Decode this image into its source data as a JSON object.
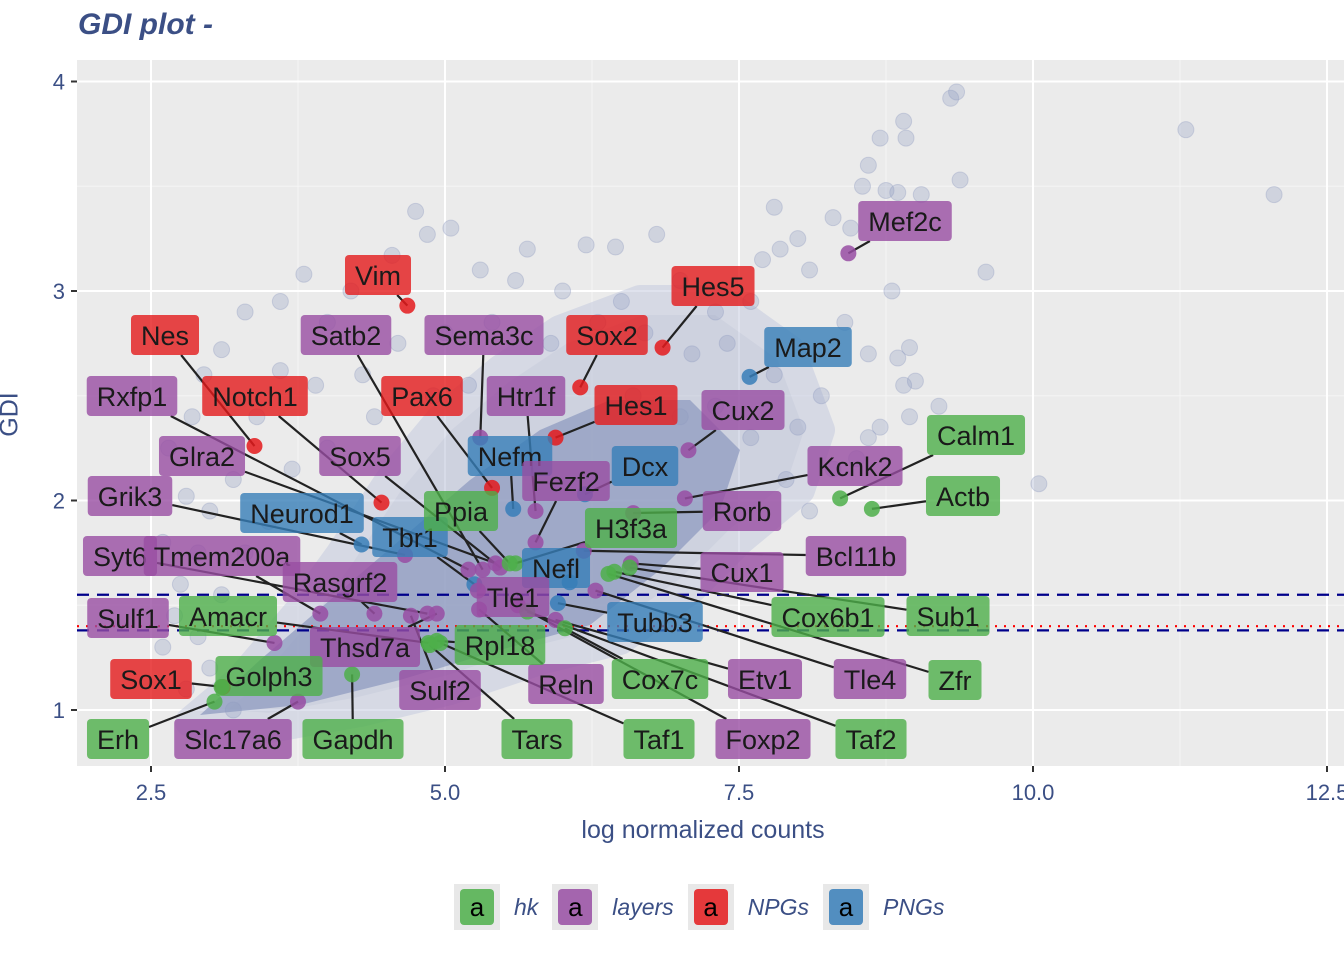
{
  "title": "GDI plot -",
  "chart_data": {
    "type": "scatter",
    "title": "GDI plot -",
    "xlabel": "log normalized counts",
    "ylabel": "GDI",
    "xlim": [
      1.9,
      12.65
    ],
    "ylim": [
      0.73,
      4.1
    ],
    "xticks": [
      2.5,
      5.0,
      7.5,
      10.0,
      12.5
    ],
    "xtick_labels": [
      "2.5",
      "5.0",
      "7.5",
      "10.0",
      "12.5"
    ],
    "yticks": [
      1,
      2,
      3,
      4
    ],
    "ytick_labels": [
      "1",
      "2",
      "3",
      "4"
    ],
    "grid": true,
    "hlines": [
      {
        "y": 1.55,
        "color": "#00008b",
        "style": "dashed"
      },
      {
        "y": 1.38,
        "color": "#00008b",
        "style": "dashed"
      },
      {
        "y": 1.4,
        "color": "#ff0000",
        "style": "dotted"
      }
    ],
    "background_color": "#8f9bc0",
    "background_points": [
      [
        12.05,
        3.46
      ],
      [
        11.3,
        3.77
      ],
      [
        10.05,
        2.08
      ],
      [
        9.35,
        3.95
      ],
      [
        9.3,
        3.92
      ],
      [
        9.38,
        3.53
      ],
      [
        9.6,
        3.09
      ],
      [
        8.9,
        3.81
      ],
      [
        8.92,
        3.73
      ],
      [
        8.7,
        3.73
      ],
      [
        8.6,
        3.6
      ],
      [
        8.55,
        3.5
      ],
      [
        8.75,
        3.48
      ],
      [
        9.05,
        3.46
      ],
      [
        8.85,
        3.47
      ],
      [
        9.0,
        2.57
      ],
      [
        8.85,
        2.68
      ],
      [
        8.95,
        2.73
      ],
      [
        8.8,
        3.0
      ],
      [
        7.8,
        3.4
      ],
      [
        8.0,
        3.25
      ],
      [
        7.7,
        3.15
      ],
      [
        7.85,
        3.2
      ],
      [
        8.3,
        3.35
      ],
      [
        8.45,
        3.3
      ],
      [
        6.8,
        3.27
      ],
      [
        5.7,
        3.2
      ],
      [
        6.2,
        3.22
      ],
      [
        6.45,
        3.21
      ],
      [
        4.85,
        3.27
      ],
      [
        5.05,
        3.3
      ],
      [
        4.75,
        3.38
      ],
      [
        4.55,
        3.17
      ],
      [
        3.8,
        3.08
      ],
      [
        3.6,
        2.62
      ],
      [
        3.1,
        2.72
      ],
      [
        2.95,
        2.6
      ],
      [
        2.85,
        2.4
      ],
      [
        2.65,
        2.25
      ],
      [
        2.8,
        2.02
      ],
      [
        2.6,
        1.8
      ],
      [
        3.3,
        2.9
      ],
      [
        3.6,
        2.95
      ],
      [
        4.2,
        3.0
      ],
      [
        4.0,
        2.85
      ],
      [
        5.3,
        3.1
      ],
      [
        5.6,
        3.05
      ],
      [
        6.0,
        3.0
      ],
      [
        6.5,
        2.95
      ],
      [
        7.0,
        3.05
      ],
      [
        7.3,
        2.9
      ],
      [
        7.6,
        2.95
      ],
      [
        8.1,
        3.1
      ],
      [
        8.4,
        2.85
      ],
      [
        8.6,
        2.7
      ],
      [
        8.9,
        2.55
      ],
      [
        8.7,
        2.35
      ],
      [
        8.95,
        2.4
      ],
      [
        9.2,
        2.45
      ],
      [
        8.5,
        2.2
      ],
      [
        8.3,
        2.15
      ],
      [
        8.1,
        1.95
      ],
      [
        7.9,
        2.1
      ],
      [
        8.6,
        2.3
      ],
      [
        3.2,
        2.1
      ],
      [
        3.0,
        1.95
      ],
      [
        2.9,
        1.75
      ],
      [
        2.75,
        1.6
      ],
      [
        2.7,
        1.45
      ],
      [
        2.6,
        1.3
      ],
      [
        3.4,
        2.4
      ],
      [
        3.9,
        2.55
      ],
      [
        4.3,
        2.6
      ],
      [
        4.6,
        2.75
      ],
      [
        5.0,
        2.8
      ],
      [
        5.4,
        2.85
      ],
      [
        5.9,
        2.75
      ],
      [
        6.3,
        2.85
      ],
      [
        6.7,
        2.8
      ],
      [
        7.1,
        2.7
      ],
      [
        7.4,
        2.75
      ],
      [
        7.8,
        2.6
      ],
      [
        8.2,
        2.5
      ],
      [
        8.0,
        2.35
      ],
      [
        7.6,
        2.3
      ],
      [
        7.3,
        2.45
      ],
      [
        4.0,
        2.25
      ],
      [
        3.7,
        2.15
      ],
      [
        3.5,
        1.9
      ],
      [
        3.3,
        1.75
      ],
      [
        3.1,
        1.55
      ],
      [
        2.9,
        1.35
      ],
      [
        3.0,
        1.2
      ],
      [
        2.8,
        1.1
      ],
      [
        3.2,
        1.0
      ],
      [
        4.4,
        2.4
      ],
      [
        4.9,
        2.5
      ],
      [
        5.2,
        2.55
      ],
      [
        6.6,
        2.5
      ],
      [
        7.0,
        2.4
      ]
    ],
    "groups": [
      {
        "name": "hk",
        "color": "#4daf4a"
      },
      {
        "name": "layers",
        "color": "#984ea3"
      },
      {
        "name": "NPGs",
        "color": "#e41a1c"
      },
      {
        "name": "PNGs",
        "color": "#377eb8"
      }
    ],
    "legend_position": "bottom",
    "legend_key_text": "a",
    "labeled_points": [
      {
        "gene": "Vim",
        "group": "NPGs",
        "x": 4.68,
        "y": 2.93
      },
      {
        "gene": "Nes",
        "group": "NPGs",
        "x": 3.38,
        "y": 2.26
      },
      {
        "gene": "Hes5",
        "group": "NPGs",
        "x": 6.85,
        "y": 2.73
      },
      {
        "gene": "Sox2",
        "group": "NPGs",
        "x": 6.15,
        "y": 2.54
      },
      {
        "gene": "Hes1",
        "group": "NPGs",
        "x": 5.94,
        "y": 2.3
      },
      {
        "gene": "Notch1",
        "group": "NPGs",
        "x": 4.46,
        "y": 1.99
      },
      {
        "gene": "Pax6",
        "group": "NPGs",
        "x": 5.4,
        "y": 2.06
      },
      {
        "gene": "Sox1",
        "group": "NPGs",
        "x": 3.11,
        "y": 1.11
      },
      {
        "gene": "Map2",
        "group": "PNGs",
        "x": 7.59,
        "y": 2.59
      },
      {
        "gene": "Nefm",
        "group": "PNGs",
        "x": 5.58,
        "y": 1.96
      },
      {
        "gene": "Dcx",
        "group": "PNGs",
        "x": 6.19,
        "y": 2.03
      },
      {
        "gene": "Neurod1",
        "group": "PNGs",
        "x": 4.29,
        "y": 1.79
      },
      {
        "gene": "Tbr1",
        "group": "PNGs",
        "x": 5.25,
        "y": 1.6
      },
      {
        "gene": "Nefl",
        "group": "PNGs",
        "x": 6.06,
        "y": 1.61
      },
      {
        "gene": "Tubb3",
        "group": "PNGs",
        "x": 5.96,
        "y": 1.51
      },
      {
        "gene": "Mef2c",
        "group": "layers",
        "x": 8.43,
        "y": 3.18
      },
      {
        "gene": "Satb2",
        "group": "layers",
        "x": 5.32,
        "y": 1.67
      },
      {
        "gene": "Sema3c",
        "group": "layers",
        "x": 5.3,
        "y": 2.3
      },
      {
        "gene": "Htr1f",
        "group": "layers",
        "x": 5.77,
        "y": 1.95
      },
      {
        "gene": "Rxfp1",
        "group": "layers",
        "x": 5.2,
        "y": 1.67
      },
      {
        "gene": "Cux2",
        "group": "layers",
        "x": 7.07,
        "y": 2.24
      },
      {
        "gene": "Kcnk2",
        "group": "layers",
        "x": 7.04,
        "y": 2.01
      },
      {
        "gene": "Rorb",
        "group": "layers",
        "x": 6.6,
        "y": 1.94
      },
      {
        "gene": "Fezf2",
        "group": "layers",
        "x": 5.77,
        "y": 1.8
      },
      {
        "gene": "Glra2",
        "group": "layers",
        "x": 5.43,
        "y": 1.7
      },
      {
        "gene": "Sox5",
        "group": "layers",
        "x": 5.47,
        "y": 1.68
      },
      {
        "gene": "Grik3",
        "group": "layers",
        "x": 4.66,
        "y": 1.74
      },
      {
        "gene": "Syt6",
        "group": "layers",
        "x": 4.85,
        "y": 1.46
      },
      {
        "gene": "Tmem200a",
        "group": "layers",
        "x": 3.94,
        "y": 1.46
      },
      {
        "gene": "Rasgrf2",
        "group": "layers",
        "x": 4.4,
        "y": 1.46
      },
      {
        "gene": "Sulf1",
        "group": "layers",
        "x": 3.55,
        "y": 1.32
      },
      {
        "gene": "Thsd7a",
        "group": "layers",
        "x": 4.93,
        "y": 1.46
      },
      {
        "gene": "Slc17a6",
        "group": "layers",
        "x": 3.75,
        "y": 1.04
      },
      {
        "gene": "Sulf2",
        "group": "layers",
        "x": 4.71,
        "y": 1.45
      },
      {
        "gene": "Reln",
        "group": "layers",
        "x": 5.29,
        "y": 1.48
      },
      {
        "gene": "Etv1",
        "group": "layers",
        "x": 5.94,
        "y": 1.43
      },
      {
        "gene": "Foxp2",
        "group": "layers",
        "x": 5.62,
        "y": 1.5
      },
      {
        "gene": "Tle1",
        "group": "layers",
        "x": 5.28,
        "y": 1.57
      },
      {
        "gene": "Tle4",
        "group": "layers",
        "x": 6.28,
        "y": 1.57
      },
      {
        "gene": "Cux1",
        "group": "layers",
        "x": 6.58,
        "y": 1.7
      },
      {
        "gene": "Bcl11b",
        "group": "layers",
        "x": 6.18,
        "y": 1.76
      },
      {
        "gene": "Calm1",
        "group": "hk",
        "x": 8.36,
        "y": 2.01
      },
      {
        "gene": "Actb",
        "group": "hk",
        "x": 8.63,
        "y": 1.96
      },
      {
        "gene": "Ppia",
        "group": "hk",
        "x": 5.55,
        "y": 1.7
      },
      {
        "gene": "H3f3a",
        "group": "hk",
        "x": 5.6,
        "y": 1.7
      },
      {
        "gene": "Cox6b1",
        "group": "hk",
        "x": 6.44,
        "y": 1.66
      },
      {
        "gene": "Sub1",
        "group": "hk",
        "x": 6.57,
        "y": 1.68
      },
      {
        "gene": "Zfr",
        "group": "hk",
        "x": 6.39,
        "y": 1.65
      },
      {
        "gene": "Amacr",
        "group": "hk",
        "x": 4.86,
        "y": 1.32
      },
      {
        "gene": "Rpl18",
        "group": "hk",
        "x": 4.93,
        "y": 1.33
      },
      {
        "gene": "Golph3",
        "group": "hk",
        "x": 3.1,
        "y": 1.11
      },
      {
        "gene": "Erh",
        "group": "hk",
        "x": 3.04,
        "y": 1.04
      },
      {
        "gene": "Gapdh",
        "group": "hk",
        "x": 4.21,
        "y": 1.17
      },
      {
        "gene": "Tars",
        "group": "hk",
        "x": 4.87,
        "y": 1.31
      },
      {
        "gene": "Taf1",
        "group": "hk",
        "x": 4.96,
        "y": 1.32
      },
      {
        "gene": "Cox7c",
        "group": "hk",
        "x": 6.02,
        "y": 1.39
      },
      {
        "gene": "Taf2",
        "group": "hk",
        "x": 5.7,
        "y": 1.47
      }
    ]
  }
}
